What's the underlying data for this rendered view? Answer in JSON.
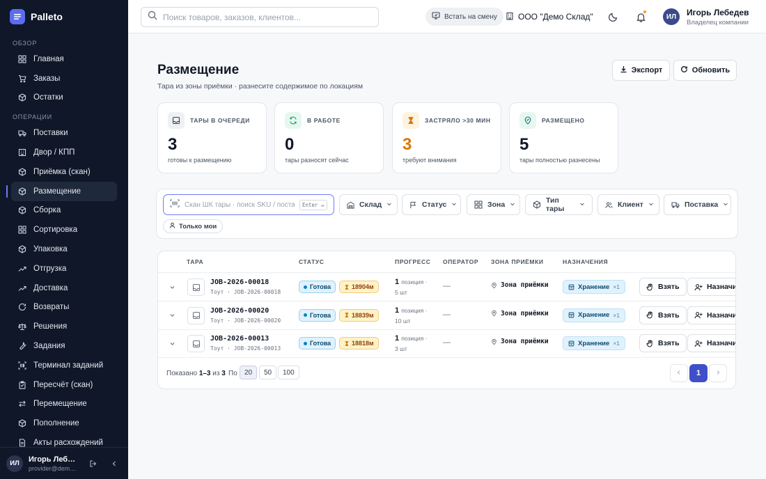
{
  "brand": {
    "name": "Palleto"
  },
  "sidebar": {
    "sections": [
      {
        "label": "Обзор",
        "items": [
          {
            "label": "Главная",
            "icon": "grid-icon"
          },
          {
            "label": "Заказы",
            "icon": "cart-icon"
          },
          {
            "label": "Остатки",
            "icon": "box-icon"
          }
        ]
      },
      {
        "label": "Операции",
        "items": [
          {
            "label": "Поставки",
            "icon": "truck-icon"
          },
          {
            "label": "Двор / КПП",
            "icon": "gate-icon"
          },
          {
            "label": "Приёмка (скан)",
            "icon": "box-icon"
          },
          {
            "label": "Размещение",
            "icon": "box-icon",
            "active": true
          },
          {
            "label": "Сборка",
            "icon": "box-icon"
          },
          {
            "label": "Сортировка",
            "icon": "grid-icon"
          },
          {
            "label": "Упаковка",
            "icon": "box-icon"
          },
          {
            "label": "Отгрузка",
            "icon": "trend-icon"
          },
          {
            "label": "Доставка",
            "icon": "trend-icon"
          },
          {
            "label": "Возвраты",
            "icon": "return-icon"
          },
          {
            "label": "Решения",
            "icon": "scale-icon"
          },
          {
            "label": "Задания",
            "icon": "wrench-icon"
          },
          {
            "label": "Терминал заданий",
            "icon": "scan-icon"
          },
          {
            "label": "Пересчёт (скан)",
            "icon": "clipboard-icon"
          },
          {
            "label": "Перемещение",
            "icon": "swap-icon"
          },
          {
            "label": "Пополнение",
            "icon": "box-icon"
          },
          {
            "label": "Акты расхождений",
            "icon": "doc-icon"
          }
        ]
      }
    ],
    "footer": {
      "initials": "ИЛ",
      "name": "Игорь Лебедев",
      "email": "provider@demo.ru"
    }
  },
  "header": {
    "search_placeholder": "Поиск товаров, заказов, клиентов...",
    "shift_label": "Встать на смену",
    "org_name": "ООО \"Демо Склад\"",
    "user": {
      "initials": "ИЛ",
      "name": "Игорь Лебедев",
      "role": "Владелец компании"
    }
  },
  "page": {
    "title": "Размещение",
    "subtitle": "Тара из зоны приёмки · разнесите содержимое по локациям",
    "export_label": "Экспорт",
    "refresh_label": "Обновить"
  },
  "stats": [
    {
      "label": "Тары в очереди",
      "value": "3",
      "caption": "готовы к размещению",
      "icon": "tray-icon",
      "color": "#111827",
      "icon_bg": "#eef0f3",
      "icon_color": "#374151"
    },
    {
      "label": "В работе",
      "value": "0",
      "caption": "тары разносят сейчас",
      "icon": "refresh-icon",
      "color": "#111827",
      "icon_bg": "#e6f7f2",
      "icon_color": "#16a34a"
    },
    {
      "label": "Застряло >30 мин",
      "value": "3",
      "caption": "требуют внимания",
      "icon": "hourglass-icon",
      "color": "#d97706",
      "icon_bg": "#fdf3e1",
      "icon_color": "#d97706"
    },
    {
      "label": "Размещено",
      "value": "5",
      "caption": "тары полностью разнесены",
      "icon": "pin-icon",
      "color": "#111827",
      "icon_bg": "#e6f7f2",
      "icon_color": "#0f766e"
    }
  ],
  "filters": {
    "scan_placeholder": "Скан ШК тары · поиск SKU / поставки",
    "enter_key": "Enter ↵",
    "selects": [
      {
        "label": "Склад",
        "icon": "warehouse-icon"
      },
      {
        "label": "Статус",
        "icon": "flag-icon"
      },
      {
        "label": "Зона",
        "icon": "grid-icon"
      },
      {
        "label": "Тип тары",
        "icon": "box-icon"
      },
      {
        "label": "Клиент",
        "icon": "users-icon"
      },
      {
        "label": "Поставка",
        "icon": "truck-icon"
      }
    ],
    "only_mine": "Только мои"
  },
  "table": {
    "columns": [
      "Тара",
      "Статус",
      "Прогресс",
      "Оператор",
      "Зона приёмки",
      "Назначения"
    ],
    "rows": [
      {
        "id": "JOB-2026-00018",
        "sub": "Тоут · JOB-2026-00018",
        "status": "Готова",
        "time": "18904м",
        "prog_num": "1",
        "prog_unit": "позиция ·",
        "prog_qty": "5 шт",
        "operator": "—",
        "zone": "Зона приёмки",
        "assign": "Хранение",
        "assign_x": "×1"
      },
      {
        "id": "JOB-2026-00020",
        "sub": "Тоут · JOB-2026-00020",
        "status": "Готова",
        "time": "18839м",
        "prog_num": "1",
        "prog_unit": "позиция ·",
        "prog_qty": "10 шт",
        "operator": "—",
        "zone": "Зона приёмки",
        "assign": "Хранение",
        "assign_x": "×1"
      },
      {
        "id": "JOB-2026-00013",
        "sub": "Тоут · JOB-2026-00013",
        "status": "Готова",
        "time": "18818м",
        "prog_num": "1",
        "prog_unit": "позиция ·",
        "prog_qty": "3 шт",
        "operator": "—",
        "zone": "Зона приёмки",
        "assign": "Хранение",
        "assign_x": "×1"
      }
    ],
    "take_label": "Взять",
    "assign_label": "Назначить",
    "footer": {
      "shown_prefix": "Показано",
      "shown_range": "1–3",
      "shown_of": "из",
      "shown_total": "3",
      "per_label": "По",
      "per_options": [
        "20",
        "50",
        "100"
      ],
      "current_page": "1"
    }
  }
}
